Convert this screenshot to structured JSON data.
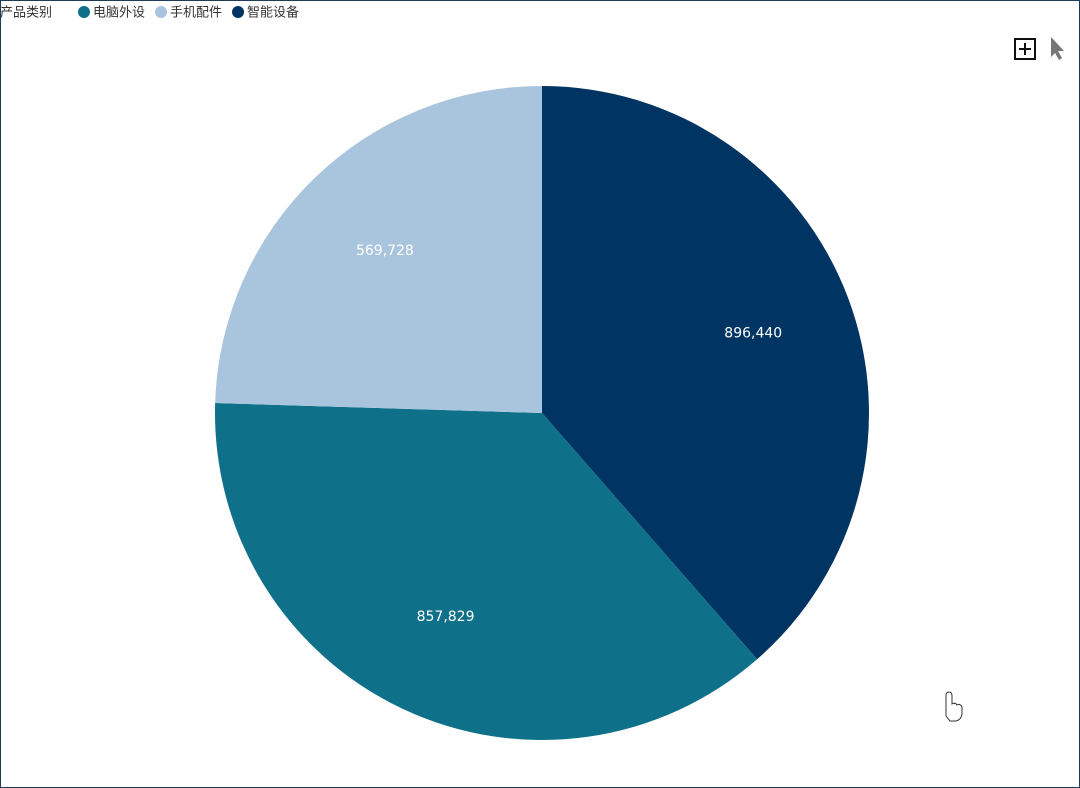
{
  "chart_data": {
    "type": "pie",
    "legend_title": "产品类别",
    "categories": [
      "智能设备",
      "电脑外设",
      "手机配件"
    ],
    "values": [
      896440,
      857829,
      569728
    ],
    "value_labels": [
      "896,440",
      "857,829",
      "569,728"
    ],
    "colors": [
      "#003462",
      "#0e7189",
      "#a9c5de"
    ],
    "legend": "top-left"
  }
}
